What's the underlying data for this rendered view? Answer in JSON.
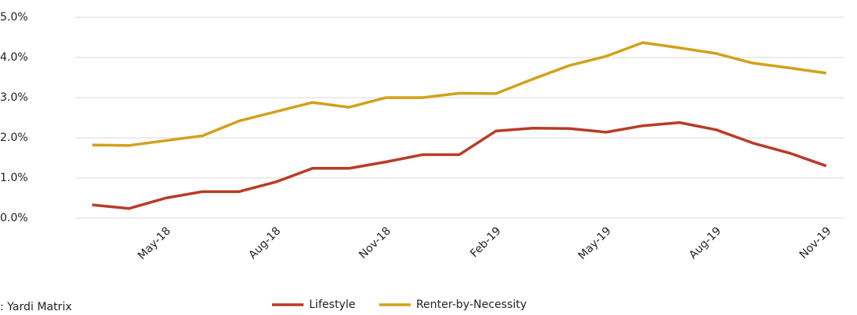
{
  "chart_data": {
    "type": "line",
    "categories": [
      null,
      null,
      "May-18",
      null,
      null,
      "Aug-18",
      null,
      null,
      "Nov-18",
      null,
      null,
      "Feb-19",
      null,
      null,
      "May-19",
      null,
      null,
      "Aug-19",
      null,
      null,
      "Nov-19"
    ],
    "series": [
      {
        "name": "Lifestyle",
        "color": "#b83c27",
        "values": [
          0.33,
          0.24,
          0.5,
          0.66,
          0.66,
          0.9,
          1.24,
          1.24,
          1.4,
          1.58,
          1.58,
          2.17,
          2.24,
          2.23,
          2.14,
          2.3,
          2.38,
          2.2,
          1.87,
          1.62,
          1.3
        ]
      },
      {
        "name": "Renter-by-Necessity",
        "color": "#d2a11c",
        "values": [
          1.82,
          1.81,
          1.93,
          2.05,
          2.42,
          2.65,
          2.88,
          2.76,
          3.0,
          3.0,
          3.11,
          3.1,
          3.46,
          3.8,
          4.03,
          4.37,
          4.24,
          4.1,
          3.86,
          3.74,
          3.61
        ]
      }
    ],
    "ylim": [
      0,
      5
    ],
    "yticks": [
      {
        "value": 0,
        "label": "0.0%"
      },
      {
        "value": 1,
        "label": "1.0%"
      },
      {
        "value": 2,
        "label": "2.0%"
      },
      {
        "value": 3,
        "label": "3.0%"
      },
      {
        "value": 4,
        "label": "4.0%"
      },
      {
        "value": 5,
        "label": "5.0%"
      }
    ],
    "grid": true,
    "legend": "bottom",
    "source": ": Yardi Matrix"
  }
}
